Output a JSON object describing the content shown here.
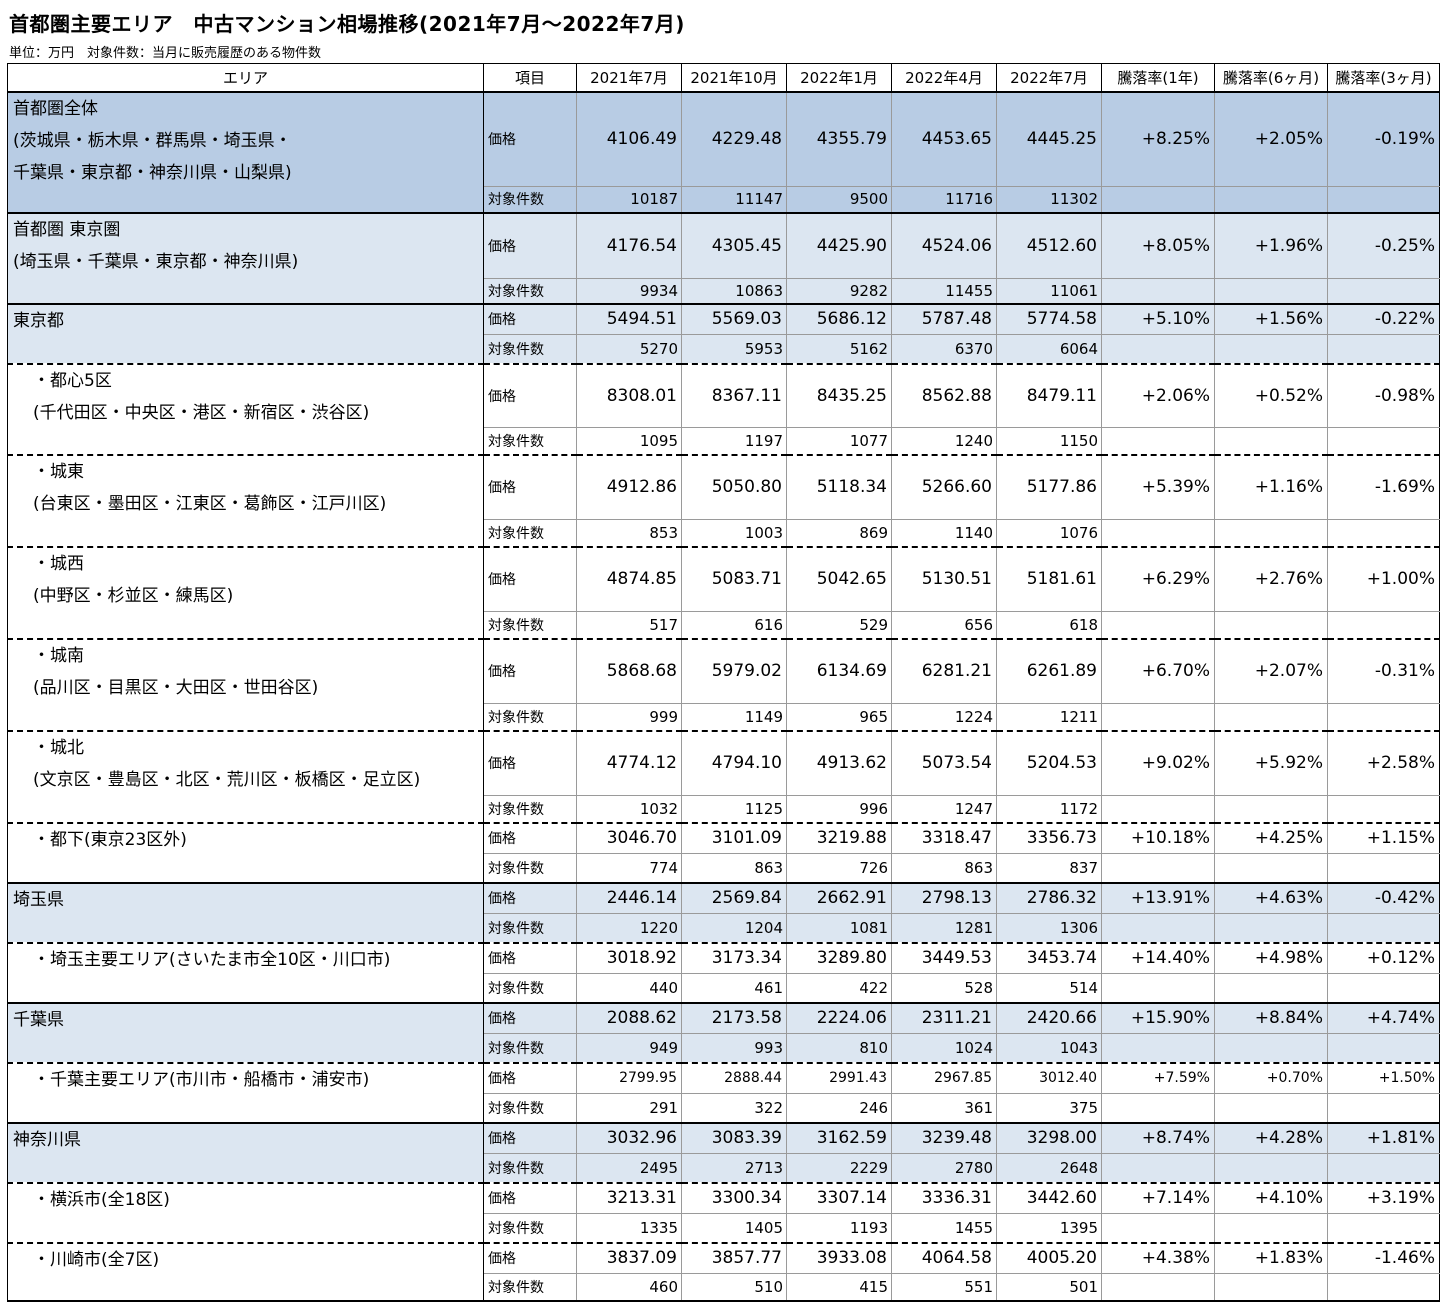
{
  "title": "首都圏主要エリア　中古マンション相場推移(2021年7月～2022年7月)",
  "subtitle": "単位：万円　対象件数：当月に販売履歴のある物件数",
  "columns": [
    "エリア",
    "項目",
    "2021年7月",
    "2021年10月",
    "2022年1月",
    "2022年4月",
    "2022年7月",
    "騰落率(1年)",
    "騰落率(6ヶ月)",
    "騰落率(3ヶ月)"
  ],
  "labels": {
    "price": "価格",
    "count": "対象件数"
  },
  "rows": [
    {
      "area_lines": [
        "首都圏全体",
        "(茨城県・栃木県・群馬県・埼玉県・",
        "千葉県・東京都・神奈川県・山梨県)"
      ],
      "price": [
        "4106.49",
        "4229.48",
        "4355.79",
        "4453.65",
        "4445.25"
      ],
      "change": [
        "+8.25%",
        "+2.05%",
        "-0.19%"
      ],
      "count": [
        "10187",
        "11147",
        "9500",
        "11716",
        "11302"
      ]
    },
    {
      "area_lines": [
        "首都圏 東京圏",
        "(埼玉県・千葉県・東京都・神奈川県)"
      ],
      "price": [
        "4176.54",
        "4305.45",
        "4425.90",
        "4524.06",
        "4512.60"
      ],
      "change": [
        "+8.05%",
        "+1.96%",
        "-0.25%"
      ],
      "count": [
        "9934",
        "10863",
        "9282",
        "11455",
        "11061"
      ]
    },
    {
      "area_lines": [
        "東京都"
      ],
      "price": [
        "5494.51",
        "5569.03",
        "5686.12",
        "5787.48",
        "5774.58"
      ],
      "change": [
        "+5.10%",
        "+1.56%",
        "-0.22%"
      ],
      "count": [
        "5270",
        "5953",
        "5162",
        "6370",
        "6064"
      ]
    },
    {
      "area_lines": [
        "・都心5区",
        "(千代田区・中央区・港区・新宿区・渋谷区)"
      ],
      "price": [
        "8308.01",
        "8367.11",
        "8435.25",
        "8562.88",
        "8479.11"
      ],
      "change": [
        "+2.06%",
        "+0.52%",
        "-0.98%"
      ],
      "count": [
        "1095",
        "1197",
        "1077",
        "1240",
        "1150"
      ]
    },
    {
      "area_lines": [
        "・城東",
        "(台東区・墨田区・江東区・葛飾区・江戸川区)"
      ],
      "price": [
        "4912.86",
        "5050.80",
        "5118.34",
        "5266.60",
        "5177.86"
      ],
      "change": [
        "+5.39%",
        "+1.16%",
        "-1.69%"
      ],
      "count": [
        "853",
        "1003",
        "869",
        "1140",
        "1076"
      ]
    },
    {
      "area_lines": [
        "・城西",
        "(中野区・杉並区・練馬区)"
      ],
      "price": [
        "4874.85",
        "5083.71",
        "5042.65",
        "5130.51",
        "5181.61"
      ],
      "change": [
        "+6.29%",
        "+2.76%",
        "+1.00%"
      ],
      "count": [
        "517",
        "616",
        "529",
        "656",
        "618"
      ]
    },
    {
      "area_lines": [
        "・城南",
        "(品川区・目黒区・大田区・世田谷区)"
      ],
      "price": [
        "5868.68",
        "5979.02",
        "6134.69",
        "6281.21",
        "6261.89"
      ],
      "change": [
        "+6.70%",
        "+2.07%",
        "-0.31%"
      ],
      "count": [
        "999",
        "1149",
        "965",
        "1224",
        "1211"
      ]
    },
    {
      "area_lines": [
        "・城北",
        "(文京区・豊島区・北区・荒川区・板橋区・足立区)"
      ],
      "price": [
        "4774.12",
        "4794.10",
        "4913.62",
        "5073.54",
        "5204.53"
      ],
      "change": [
        "+9.02%",
        "+5.92%",
        "+2.58%"
      ],
      "count": [
        "1032",
        "1125",
        "996",
        "1247",
        "1172"
      ]
    },
    {
      "area_lines": [
        "・都下(東京23区外)"
      ],
      "price": [
        "3046.70",
        "3101.09",
        "3219.88",
        "3318.47",
        "3356.73"
      ],
      "change": [
        "+10.18%",
        "+4.25%",
        "+1.15%"
      ],
      "count": [
        "774",
        "863",
        "726",
        "863",
        "837"
      ]
    },
    {
      "area_lines": [
        "埼玉県"
      ],
      "price": [
        "2446.14",
        "2569.84",
        "2662.91",
        "2798.13",
        "2786.32"
      ],
      "change": [
        "+13.91%",
        "+4.63%",
        "-0.42%"
      ],
      "count": [
        "1220",
        "1204",
        "1081",
        "1281",
        "1306"
      ]
    },
    {
      "area_lines": [
        "・埼玉主要エリア(さいたま市全10区・川口市)"
      ],
      "price": [
        "3018.92",
        "3173.34",
        "3289.80",
        "3449.53",
        "3453.74"
      ],
      "change": [
        "+14.40%",
        "+4.98%",
        "+0.12%"
      ],
      "count": [
        "440",
        "461",
        "422",
        "528",
        "514"
      ]
    },
    {
      "area_lines": [
        "千葉県"
      ],
      "price": [
        "2088.62",
        "2173.58",
        "2224.06",
        "2311.21",
        "2420.66"
      ],
      "change": [
        "+15.90%",
        "+8.84%",
        "+4.74%"
      ],
      "count": [
        "949",
        "993",
        "810",
        "1024",
        "1043"
      ]
    },
    {
      "area_lines": [
        "・千葉主要エリア(市川市・船橋市・浦安市)"
      ],
      "price": [
        "2799.95",
        "2888.44",
        "2991.43",
        "2967.85",
        "3012.40"
      ],
      "change": [
        "+7.59%",
        "+0.70%",
        "+1.50%"
      ],
      "count": [
        "291",
        "322",
        "246",
        "361",
        "375"
      ]
    },
    {
      "area_lines": [
        "神奈川県"
      ],
      "price": [
        "3032.96",
        "3083.39",
        "3162.59",
        "3239.48",
        "3298.00"
      ],
      "change": [
        "+8.74%",
        "+4.28%",
        "+1.81%"
      ],
      "count": [
        "2495",
        "2713",
        "2229",
        "2780",
        "2648"
      ]
    },
    {
      "area_lines": [
        "・横浜市(全18区)"
      ],
      "price": [
        "3213.31",
        "3300.34",
        "3307.14",
        "3336.31",
        "3442.60"
      ],
      "change": [
        "+7.14%",
        "+4.10%",
        "+3.19%"
      ],
      "count": [
        "1335",
        "1405",
        "1193",
        "1455",
        "1395"
      ]
    },
    {
      "area_lines": [
        "・川崎市(全7区)"
      ],
      "price": [
        "3837.09",
        "3857.77",
        "3933.08",
        "4064.58",
        "4005.20"
      ],
      "change": [
        "+4.38%",
        "+1.83%",
        "-1.46%"
      ],
      "count": [
        "460",
        "510",
        "415",
        "551",
        "501"
      ]
    }
  ]
}
